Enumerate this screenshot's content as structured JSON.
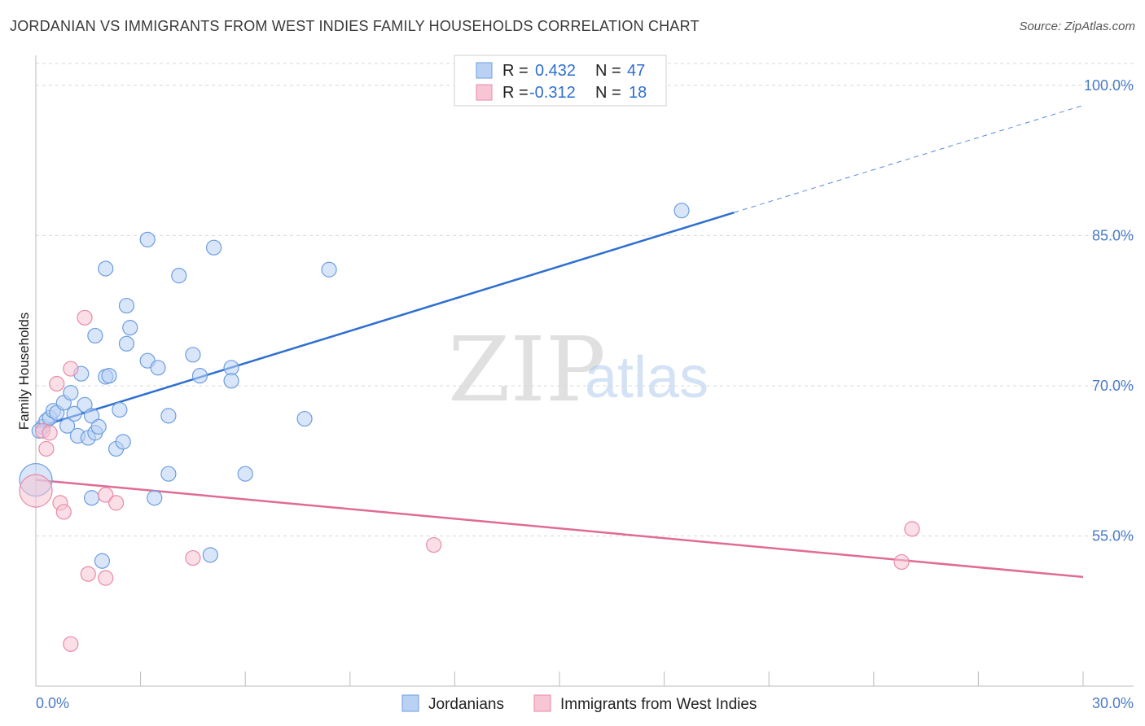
{
  "title": "JORDANIAN VS IMMIGRANTS FROM WEST INDIES FAMILY HOUSEHOLDS CORRELATION CHART",
  "source": "Source: ZipAtlas.com",
  "watermark": {
    "zip": "ZIP",
    "atlas": "atlas"
  },
  "colors": {
    "blue_fill": "#b9d2f4",
    "blue_stroke": "#6d9de0",
    "blue_line": "#2e6fd0",
    "pink_fill": "#f7c5d4",
    "pink_stroke": "#e98aa8",
    "pink_line": "#e06b95",
    "grid": "#d8d8d8",
    "tick_label": "#4a7bc8"
  },
  "stats_legend": [
    {
      "r_label": "R =",
      "r_value": "0.432",
      "n_label": "N =",
      "n_value": "47"
    },
    {
      "r_label": "R =",
      "r_value": "-0.312",
      "n_label": "N =",
      "n_value": "18"
    }
  ],
  "chart_data": {
    "type": "scatter",
    "title": "JORDANIAN VS IMMIGRANTS FROM WEST INDIES FAMILY HOUSEHOLDS CORRELATION CHART",
    "xlabel": "",
    "ylabel": "Family Households",
    "xlim": [
      0,
      30
    ],
    "ylim": [
      40,
      103
    ],
    "x_tick_labels": [
      "0.0%",
      "30.0%"
    ],
    "y_ticks": [
      55,
      70,
      85,
      100
    ],
    "y_tick_labels": [
      "55.0%",
      "70.0%",
      "85.0%",
      "100.0%"
    ],
    "grid": true,
    "series": [
      {
        "name": "Jordanians",
        "points": [
          [
            0.2,
            65.9
          ],
          [
            0.3,
            66.5
          ],
          [
            0.4,
            66.8
          ],
          [
            0.5,
            67.5
          ],
          [
            0.6,
            67.3
          ],
          [
            0.8,
            68.3
          ],
          [
            0.9,
            66.0
          ],
          [
            1.0,
            69.3
          ],
          [
            1.1,
            67.2
          ],
          [
            1.2,
            65.0
          ],
          [
            1.3,
            71.2
          ],
          [
            1.4,
            68.1
          ],
          [
            1.5,
            64.8
          ],
          [
            1.6,
            58.8
          ],
          [
            1.6,
            67.0
          ],
          [
            1.7,
            75.0
          ],
          [
            1.7,
            65.3
          ],
          [
            1.8,
            65.9
          ],
          [
            1.9,
            52.5
          ],
          [
            2.0,
            81.7
          ],
          [
            2.0,
            70.9
          ],
          [
            2.1,
            71.0
          ],
          [
            2.3,
            63.7
          ],
          [
            2.4,
            67.6
          ],
          [
            2.5,
            64.4
          ],
          [
            2.6,
            78.0
          ],
          [
            2.6,
            74.2
          ],
          [
            2.7,
            75.8
          ],
          [
            3.2,
            84.6
          ],
          [
            3.2,
            72.5
          ],
          [
            3.4,
            58.8
          ],
          [
            3.5,
            71.8
          ],
          [
            3.8,
            61.2
          ],
          [
            3.8,
            67.0
          ],
          [
            4.1,
            81.0
          ],
          [
            4.5,
            73.1
          ],
          [
            4.7,
            71.0
          ],
          [
            5.0,
            53.1
          ],
          [
            5.1,
            83.8
          ],
          [
            5.6,
            71.8
          ],
          [
            5.6,
            70.5
          ],
          [
            6.0,
            61.2
          ],
          [
            7.7,
            66.7
          ],
          [
            8.4,
            81.6
          ],
          [
            18.5,
            87.5
          ],
          [
            0.0,
            60.6
          ],
          [
            0.1,
            65.5
          ]
        ],
        "trend": {
          "x0": 0,
          "y0": 65.8,
          "x1": 20.0,
          "y1": 87.3,
          "dashed_to_x": 30,
          "dashed_to_y": 98.0
        }
      },
      {
        "name": "Immigrants from West Indies",
        "points": [
          [
            0.0,
            59.5
          ],
          [
            0.2,
            65.5
          ],
          [
            0.3,
            63.7
          ],
          [
            0.4,
            65.3
          ],
          [
            0.6,
            70.2
          ],
          [
            0.7,
            58.3
          ],
          [
            0.8,
            57.4
          ],
          [
            1.0,
            71.7
          ],
          [
            1.0,
            44.2
          ],
          [
            1.4,
            76.8
          ],
          [
            1.5,
            51.2
          ],
          [
            2.0,
            59.1
          ],
          [
            2.0,
            50.8
          ],
          [
            2.3,
            58.3
          ],
          [
            4.5,
            52.8
          ],
          [
            11.4,
            54.1
          ],
          [
            24.8,
            52.4
          ],
          [
            25.1,
            55.7
          ]
        ],
        "trend": {
          "x0": 0,
          "y0": 60.6,
          "x1": 30,
          "y1": 50.9
        }
      }
    ]
  },
  "bottom_legend": [
    {
      "label": "Jordanians"
    },
    {
      "label": "Immigrants from West Indies"
    }
  ]
}
